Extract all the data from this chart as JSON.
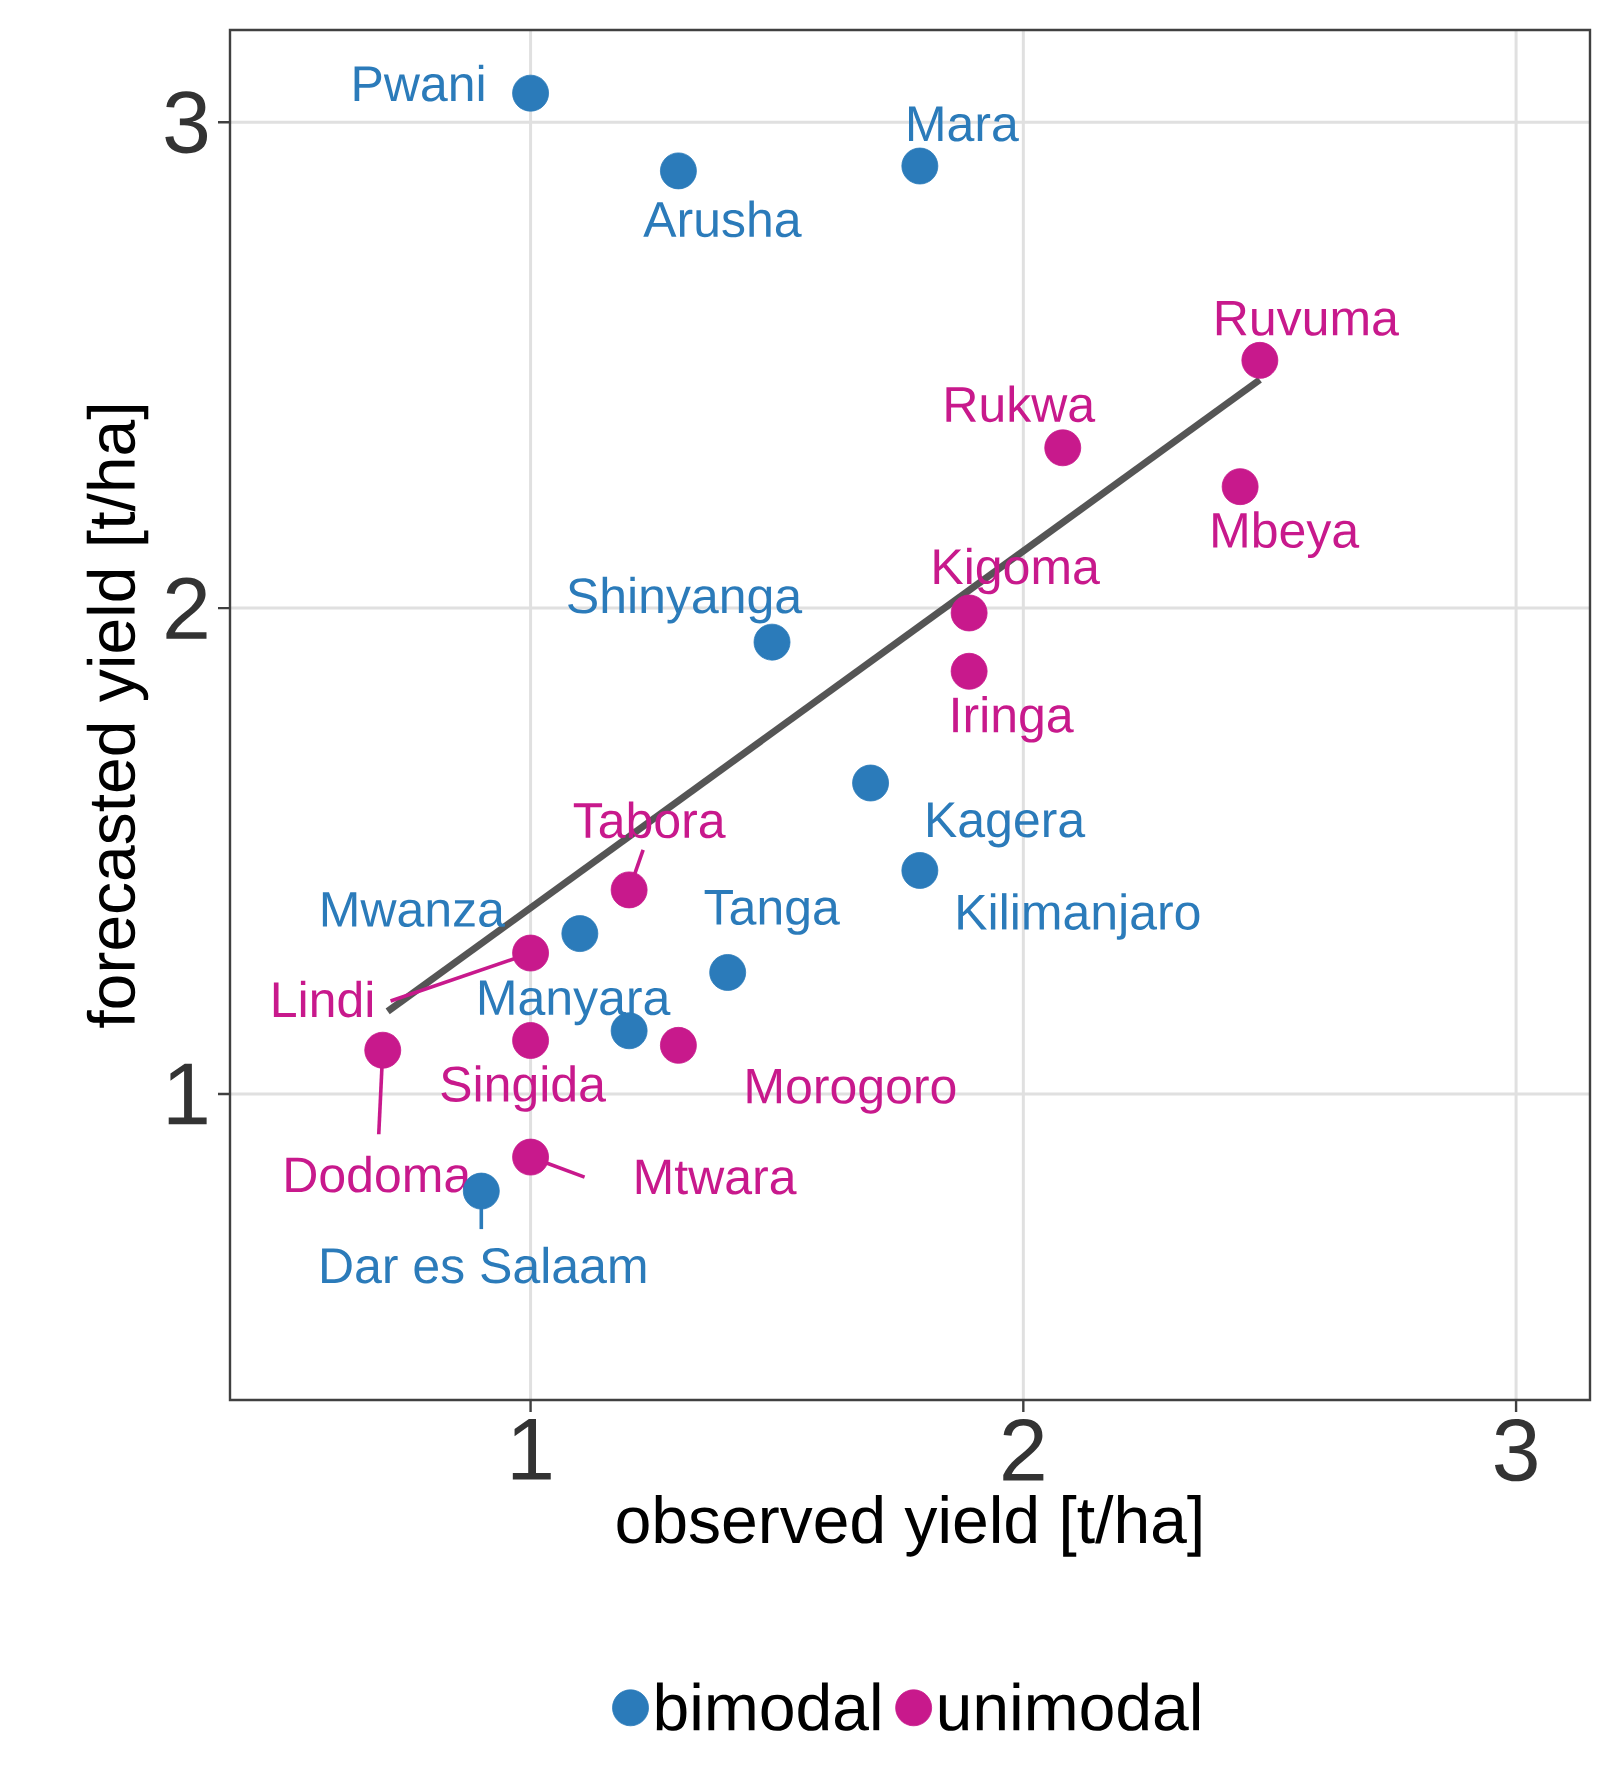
{
  "chart_data": {
    "type": "scatter",
    "xlabel": "observed yield [t/ha]",
    "ylabel": "forecasted yield [t/ha]",
    "xlim": [
      0.39,
      3.15
    ],
    "ylim": [
      0.37,
      3.19
    ],
    "xticks": [
      1,
      2,
      3
    ],
    "yticks": [
      1,
      2,
      3
    ],
    "grid": true,
    "legend": "bottom",
    "series": [
      {
        "name": "bimodal",
        "marker": "circle",
        "color": "#2b7bba",
        "x": [
          1.0,
          1.3,
          1.79,
          1.49,
          1.69,
          1.79,
          1.1,
          1.4,
          1.2,
          0.9
        ],
        "values": [
          3.06,
          2.9,
          2.91,
          1.93,
          1.64,
          1.46,
          1.33,
          1.25,
          1.13,
          0.8
        ]
      },
      {
        "name": "unimodal",
        "marker": "circle",
        "color": "#c8198c",
        "x": [
          2.48,
          2.08,
          2.44,
          1.89,
          1.89,
          1.2,
          1.0,
          1.3,
          1.0,
          0.7,
          1.0
        ],
        "values": [
          2.51,
          2.33,
          2.25,
          1.99,
          1.87,
          1.42,
          1.29,
          1.1,
          1.11,
          1.09,
          0.87
        ]
      },
      {
        "type": "line",
        "marker": "none",
        "color": "#555555",
        "x": [
          0.71,
          2.48
        ],
        "values": [
          1.17,
          2.47
        ]
      }
    ],
    "annotations": [
      {
        "text": "Pwani",
        "x": 1.0,
        "y": 3.06
      },
      {
        "text": "Arusha",
        "x": 1.3,
        "y": 2.9
      },
      {
        "text": "Mara",
        "x": 1.79,
        "y": 2.91
      },
      {
        "text": "Shinyanga",
        "x": 1.49,
        "y": 1.93
      },
      {
        "text": "Kagera",
        "x": 1.69,
        "y": 1.64
      },
      {
        "text": "Kilimanjaro",
        "x": 1.79,
        "y": 1.46
      },
      {
        "text": "Mwanza",
        "x": 1.1,
        "y": 1.33
      },
      {
        "text": "Tanga",
        "x": 1.4,
        "y": 1.25
      },
      {
        "text": "Manyara",
        "x": 1.2,
        "y": 1.13
      },
      {
        "text": "Dar es Salaam",
        "x": 0.9,
        "y": 0.8
      },
      {
        "text": "Ruvuma",
        "x": 2.48,
        "y": 2.51
      },
      {
        "text": "Rukwa",
        "x": 2.08,
        "y": 2.33
      },
      {
        "text": "Mbeya",
        "x": 2.44,
        "y": 2.25
      },
      {
        "text": "Kigoma",
        "x": 1.89,
        "y": 1.99
      },
      {
        "text": "Iringa",
        "x": 1.89,
        "y": 1.87
      },
      {
        "text": "Tabora",
        "x": 1.2,
        "y": 1.42
      },
      {
        "text": "Lindi",
        "x": 1.0,
        "y": 1.29
      },
      {
        "text": "Morogoro",
        "x": 1.3,
        "y": 1.1
      },
      {
        "text": "Singida",
        "x": 1.0,
        "y": 1.11
      },
      {
        "text": "Dodoma",
        "x": 0.7,
        "y": 1.09
      },
      {
        "text": "Mtwara",
        "x": 1.0,
        "y": 0.87
      }
    ]
  }
}
